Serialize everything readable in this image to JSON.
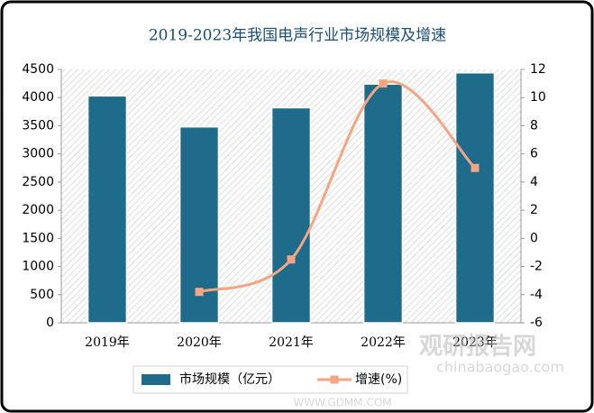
{
  "chart_data": {
    "type": "bar",
    "title": "2019-2023年我国电声行业市场规模及增速",
    "categories": [
      "2019年",
      "2020年",
      "2021年",
      "2022年",
      "2023年"
    ],
    "series": [
      {
        "name": "市场规模（亿元）",
        "type": "bar",
        "color": "#1e6b8c",
        "values": [
          4030,
          3480,
          3820,
          4240,
          4440
        ]
      },
      {
        "name": "增速(%)",
        "type": "line",
        "axis": "y2",
        "color": "#f4a582",
        "values": [
          null,
          -3.8,
          -1.5,
          11.0,
          5.0
        ]
      }
    ],
    "ylim": [
      0,
      4500
    ],
    "yticks": [
      0,
      500,
      1000,
      1500,
      2000,
      2500,
      3000,
      3500,
      4000,
      4500
    ],
    "y2lim": [
      -6,
      12
    ],
    "y2ticks": [
      -6,
      -4,
      -2,
      0,
      2,
      4,
      6,
      8,
      10,
      12
    ],
    "legend": "bottom",
    "watermarks": [
      "观研报告网",
      "chinabaogao.com",
      "WWW.GDMM.COM"
    ]
  }
}
